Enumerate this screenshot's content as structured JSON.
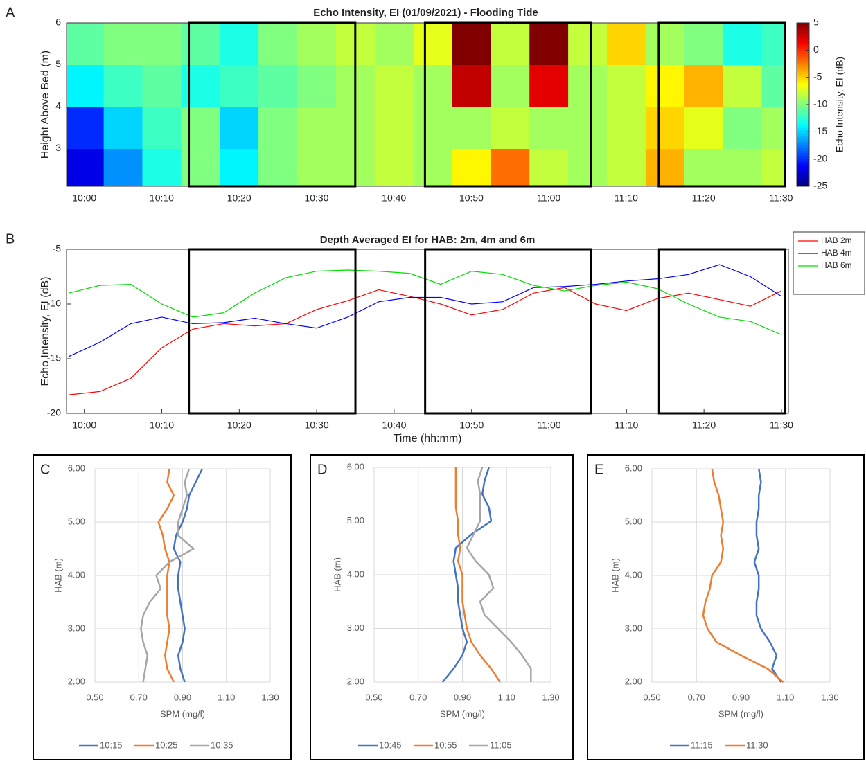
{
  "chart_data": [
    {
      "type": "heatmap",
      "panel": "A",
      "title": "Echo Intensity, EI (01/09/2021) - Flooding Tide",
      "ylabel": "Height Above Bed (m)",
      "colorbar_label": "Echo Intensity, EI (dB)",
      "x": [
        600,
        605,
        610,
        615,
        620,
        625,
        630,
        635,
        640,
        645,
        650,
        655,
        660,
        665,
        670,
        675,
        680,
        685,
        690
      ],
      "y": [
        2.5,
        3.5,
        4.5,
        5.5
      ],
      "values": [
        [
          -22,
          -17,
          -13,
          -10,
          -14,
          -10,
          -9,
          -9,
          -8,
          -9,
          -6,
          -2,
          -8,
          -9,
          -8,
          -4,
          -9,
          -9,
          -8
        ],
        [
          -20,
          -15,
          -12,
          -10,
          -15,
          -10,
          -9,
          -9,
          -8,
          -9,
          -9,
          -8,
          -9,
          -9,
          -8,
          -5,
          -7,
          -10,
          -9
        ],
        [
          -14,
          -12,
          -11,
          -13,
          -12,
          -11,
          -10,
          -9,
          -8,
          -9,
          3,
          -9,
          2,
          -9,
          -8,
          -6,
          -4,
          -8,
          -11
        ],
        [
          -11,
          -10,
          -10,
          -11,
          -13,
          -10,
          -9,
          -8,
          -9,
          -7,
          5,
          -8,
          5,
          -8,
          -5,
          -9,
          -10,
          -13,
          -12
        ]
      ],
      "xlim": [
        597.7,
        690.5
      ],
      "ylim": [
        2.1,
        6
      ],
      "xticks": [
        {
          "value": 600,
          "label": "10:00"
        },
        {
          "value": 610,
          "label": "10:10"
        },
        {
          "value": 620,
          "label": "10:20"
        },
        {
          "value": 630,
          "label": "10:30"
        },
        {
          "value": 640,
          "label": "10:40"
        },
        {
          "value": 650,
          "label": "10:50"
        },
        {
          "value": 660,
          "label": "11:00"
        },
        {
          "value": 670,
          "label": "11:10"
        },
        {
          "value": 680,
          "label": "11:20"
        },
        {
          "value": 690,
          "label": "11:30"
        }
      ],
      "yticks": [
        3,
        4,
        5,
        6
      ],
      "clim": [
        -25,
        5
      ],
      "cticks": [
        -25,
        -20,
        -15,
        -10,
        -5,
        0,
        5
      ],
      "colormap": "jet",
      "windows": [
        [
          613.5,
          635
        ],
        [
          644,
          665.4
        ],
        [
          674.2,
          690.5
        ]
      ]
    },
    {
      "type": "line",
      "panel": "B",
      "title": "Depth Averaged EI for HAB: 2m, 4m and 6m",
      "xlabel": "Time (hh:mm)",
      "ylabel": "Echo Intensity, EI (dB)",
      "x": [
        598,
        602,
        606,
        610,
        614,
        618,
        622,
        626,
        630,
        634,
        638,
        642,
        646,
        650,
        654,
        658,
        662,
        666,
        670,
        674,
        678,
        682,
        686,
        690
      ],
      "series": [
        {
          "name": "HAB 2m",
          "color": "#ff0000",
          "values": [
            -18.3,
            -18.0,
            -16.8,
            -14.0,
            -12.3,
            -11.8,
            -12.0,
            -11.8,
            -10.5,
            -9.7,
            -8.7,
            -9.3,
            -10.0,
            -11.0,
            -10.5,
            -9.0,
            -8.5,
            -10.0,
            -10.6,
            -9.5,
            -9.0,
            -9.6,
            -10.2,
            -8.8
          ]
        },
        {
          "name": "HAB 4m",
          "color": "#0000ff",
          "values": [
            -14.8,
            -13.5,
            -11.8,
            -11.2,
            -11.8,
            -11.7,
            -11.3,
            -11.8,
            -12.2,
            -11.2,
            -9.8,
            -9.4,
            -9.4,
            -10.0,
            -9.8,
            -8.5,
            -8.4,
            -8.2,
            -7.9,
            -7.7,
            -7.3,
            -6.4,
            -7.5,
            -9.3
          ]
        },
        {
          "name": "HAB 6m",
          "color": "#00dd00",
          "values": [
            -9.0,
            -8.3,
            -8.2,
            -10.0,
            -11.2,
            -10.8,
            -9.0,
            -7.6,
            -7.0,
            -6.9,
            -7.0,
            -7.2,
            -8.2,
            -7.0,
            -7.3,
            -8.3,
            -8.8,
            -8.3,
            -8.0,
            -8.6,
            -10.0,
            -11.2,
            -11.6,
            -12.8
          ]
        }
      ],
      "xlim": [
        597.7,
        690.9
      ],
      "ylim": [
        -20,
        -5
      ],
      "xticks": [
        {
          "value": 600,
          "label": "10:00"
        },
        {
          "value": 610,
          "label": "10:10"
        },
        {
          "value": 620,
          "label": "10:20"
        },
        {
          "value": 630,
          "label": "10:30"
        },
        {
          "value": 640,
          "label": "10:40"
        },
        {
          "value": 650,
          "label": "10:50"
        },
        {
          "value": 660,
          "label": "11:00"
        },
        {
          "value": 670,
          "label": "11:10"
        },
        {
          "value": 680,
          "label": "11:20"
        },
        {
          "value": 690,
          "label": "11:30"
        }
      ],
      "yticks": [
        -20,
        -15,
        -10,
        -5
      ],
      "legend": "outside-right",
      "windows": [
        [
          613.5,
          635
        ],
        [
          644,
          665.4
        ],
        [
          674.2,
          690.5
        ]
      ]
    },
    {
      "type": "profile",
      "panel": "C",
      "xlabel": "SPM (mg/l)",
      "ylabel": "HAB (m)",
      "grid": true,
      "y": [
        2.0,
        2.25,
        2.5,
        2.75,
        3.0,
        3.25,
        3.5,
        3.75,
        4.0,
        4.25,
        4.5,
        4.75,
        5.0,
        5.25,
        5.5,
        5.75,
        6.0
      ],
      "series": [
        {
          "name": "10:15",
          "color": "#4472c4",
          "values": [
            0.91,
            0.89,
            0.88,
            0.9,
            0.91,
            0.9,
            0.89,
            0.88,
            0.88,
            0.89,
            0.86,
            0.87,
            0.9,
            0.92,
            0.93,
            0.96,
            0.99
          ]
        },
        {
          "name": "10:25",
          "color": "#ed7d31",
          "values": [
            0.86,
            0.83,
            0.82,
            0.83,
            0.84,
            0.83,
            0.83,
            0.83,
            0.83,
            0.84,
            0.82,
            0.81,
            0.79,
            0.83,
            0.86,
            0.83,
            0.84
          ]
        },
        {
          "name": "10:35",
          "color": "#a5a5a5",
          "values": [
            0.72,
            0.73,
            0.74,
            0.72,
            0.71,
            0.72,
            0.75,
            0.8,
            0.78,
            0.84,
            0.95,
            0.88,
            0.88,
            0.9,
            0.92,
            0.91,
            0.93
          ]
        }
      ],
      "xlim": [
        0.5,
        1.3
      ],
      "ylim": [
        2,
        6
      ],
      "xticks": [
        {
          "value": 0.5,
          "label": "0.50"
        },
        {
          "value": 0.7,
          "label": "0.70"
        },
        {
          "value": 0.9,
          "label": "0.90"
        },
        {
          "value": 1.1,
          "label": "1.10"
        },
        {
          "value": 1.3,
          "label": "1.30"
        }
      ],
      "yticks": [
        {
          "value": 2,
          "label": "2.00"
        },
        {
          "value": 3,
          "label": "3.00"
        },
        {
          "value": 4,
          "label": "4.00"
        },
        {
          "value": 5,
          "label": "5.00"
        },
        {
          "value": 6,
          "label": "6.00"
        }
      ]
    },
    {
      "type": "profile",
      "panel": "D",
      "xlabel": "SPM (mg/l)",
      "ylabel": "HAB (m)",
      "grid": true,
      "y": [
        2.0,
        2.25,
        2.5,
        2.75,
        3.0,
        3.25,
        3.5,
        3.75,
        4.0,
        4.25,
        4.5,
        4.75,
        5.0,
        5.25,
        5.5,
        5.75,
        6.0
      ],
      "series": [
        {
          "name": "10:45",
          "color": "#4472c4",
          "values": [
            0.81,
            0.86,
            0.9,
            0.92,
            0.9,
            0.89,
            0.88,
            0.88,
            0.87,
            0.86,
            0.87,
            0.94,
            1.03,
            1.02,
            0.99,
            1.0,
            1.02
          ]
        },
        {
          "name": "10:55",
          "color": "#ed7d31",
          "values": [
            1.07,
            1.03,
            0.98,
            0.94,
            0.92,
            0.91,
            0.9,
            0.9,
            0.9,
            0.88,
            0.89,
            0.88,
            0.88,
            0.87,
            0.87,
            0.87,
            0.87
          ]
        },
        {
          "name": "11:05",
          "color": "#a5a5a5",
          "values": [
            1.21,
            1.21,
            1.17,
            1.12,
            1.06,
            1.0,
            0.98,
            1.04,
            1.02,
            0.96,
            0.92,
            0.95,
            0.98,
            0.98,
            0.98,
            0.97,
            0.99
          ]
        }
      ],
      "xlim": [
        0.5,
        1.3
      ],
      "ylim": [
        2,
        6
      ],
      "xticks": [
        {
          "value": 0.5,
          "label": "0.50"
        },
        {
          "value": 0.7,
          "label": "0.70"
        },
        {
          "value": 0.9,
          "label": "0.90"
        },
        {
          "value": 1.1,
          "label": "1.10"
        },
        {
          "value": 1.3,
          "label": "1.30"
        }
      ],
      "yticks": [
        {
          "value": 2,
          "label": "2.00"
        },
        {
          "value": 3,
          "label": "3.00"
        },
        {
          "value": 4,
          "label": "4.00"
        },
        {
          "value": 5,
          "label": "5.00"
        },
        {
          "value": 6,
          "label": "6.00"
        }
      ]
    },
    {
      "type": "profile",
      "panel": "E",
      "xlabel": "SPM (mg/l)",
      "ylabel": "HAB (m)",
      "grid": true,
      "y": [
        2.0,
        2.25,
        2.5,
        2.75,
        3.0,
        3.25,
        3.5,
        3.75,
        4.0,
        4.25,
        4.5,
        4.75,
        5.0,
        5.25,
        5.5,
        5.75,
        6.0
      ],
      "series": [
        {
          "name": "11:15",
          "color": "#4472c4",
          "values": [
            1.08,
            1.04,
            1.06,
            1.03,
            0.99,
            0.97,
            0.97,
            0.98,
            0.98,
            0.96,
            0.98,
            0.97,
            0.97,
            0.98,
            0.98,
            0.99,
            0.98
          ]
        },
        {
          "name": "11:30",
          "color": "#ed7d31",
          "values": [
            1.09,
            1.02,
            0.9,
            0.79,
            0.75,
            0.73,
            0.74,
            0.76,
            0.77,
            0.81,
            0.82,
            0.81,
            0.82,
            0.81,
            0.8,
            0.78,
            0.77
          ]
        }
      ],
      "xlim": [
        0.5,
        1.3
      ],
      "ylim": [
        2,
        6
      ],
      "xticks": [
        {
          "value": 0.5,
          "label": "0.50"
        },
        {
          "value": 0.7,
          "label": "0.70"
        },
        {
          "value": 0.9,
          "label": "0.90"
        },
        {
          "value": 1.1,
          "label": "1.10"
        },
        {
          "value": 1.3,
          "label": "1.30"
        }
      ],
      "yticks": [
        {
          "value": 2,
          "label": "2.00"
        },
        {
          "value": 3,
          "label": "3.00"
        },
        {
          "value": 4,
          "label": "4.00"
        },
        {
          "value": 5,
          "label": "5.00"
        },
        {
          "value": 6,
          "label": "6.00"
        }
      ]
    }
  ]
}
